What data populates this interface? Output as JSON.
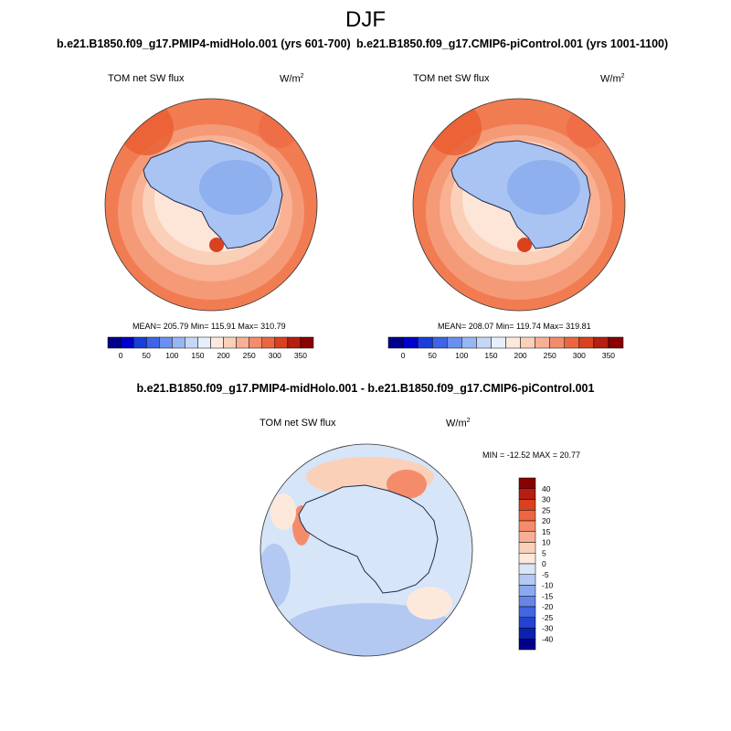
{
  "title": "DJF",
  "panels": {
    "left": {
      "title": "b.e21.B1850.f09_g17.PMIP4-midHolo.001 (yrs 601-700)",
      "var_label": "TOM net SW flux",
      "units_base": "W/m",
      "units_exp": "2",
      "stats": "MEAN= 205.79  Min= 115.91  Max= 310.79"
    },
    "right": {
      "title": "b.e21.B1850.f09_g17.CMIP6-piControl.001 (yrs 1001-1100)",
      "var_label": "TOM net SW flux",
      "units_base": "W/m",
      "units_exp": "2",
      "stats": "MEAN= 208.07  Min= 119.74  Max= 319.81"
    },
    "diff": {
      "title": "b.e21.B1850.f09_g17.PMIP4-midHolo.001 - b.e21.B1850.f09_g17.CMIP6-piControl.001",
      "var_label": "TOM net SW flux",
      "units_base": "W/m",
      "units_exp": "2",
      "stats": "MIN = -12.52 MAX =  20.77"
    }
  },
  "colorbar_abs": {
    "colors": [
      "#00008b",
      "#0000cd",
      "#1a3fd9",
      "#3f64e6",
      "#6a8ff0",
      "#98b6f4",
      "#c4d7f6",
      "#e6effb",
      "#fde9dc",
      "#fbd0b9",
      "#f8b094",
      "#f48c6c",
      "#ec6641",
      "#d9411f",
      "#b51e10",
      "#8b0000"
    ],
    "ticks": [
      "0",
      "50",
      "100",
      "150",
      "200",
      "250",
      "300",
      "350"
    ]
  },
  "colorbar_diff": {
    "colors": [
      "#8b0000",
      "#b51e10",
      "#d9411f",
      "#ec6641",
      "#f48c6c",
      "#f8b094",
      "#fbd0b9",
      "#fde9dc",
      "#d9e6f7",
      "#b4c9f2",
      "#8ba9ee",
      "#6687e6",
      "#4266dd",
      "#2344cf",
      "#0b22b0",
      "#00008b"
    ],
    "ticks": [
      "40",
      "30",
      "25",
      "20",
      "15",
      "10",
      "5",
      "0",
      "-5",
      "-10",
      "-15",
      "-20",
      "-25",
      "-30",
      "-40"
    ]
  },
  "colors": {
    "land": "#a9c3f3",
    "land_inner": "#8fb0ee",
    "ocean_far": "#f27c52",
    "ocean_mid": "#f9b193",
    "ocean_near": "#fde6d8",
    "diff_base": "#d6e5f8"
  }
}
